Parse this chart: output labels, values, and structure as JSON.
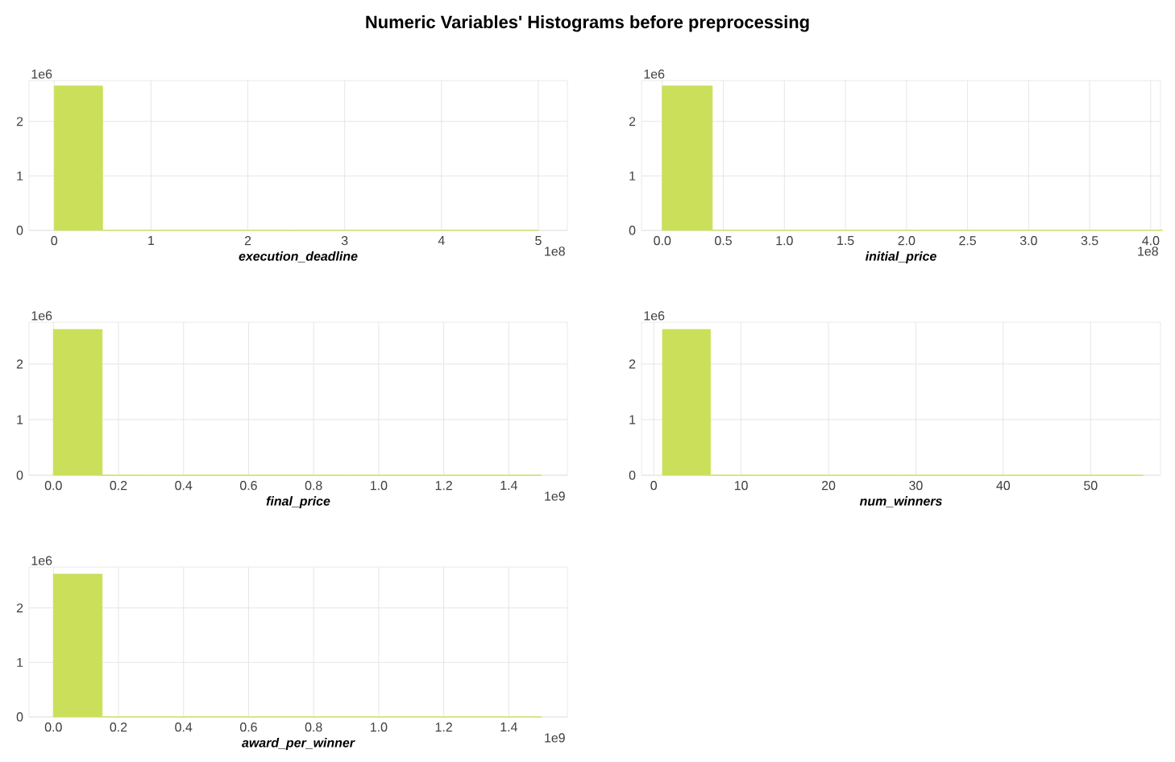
{
  "chart_data": [
    {
      "type": "histogram",
      "title": "Numeric Variables' Histograms before preprocessing",
      "xlabel": "execution_deadline",
      "color": "#cbdf5a",
      "bins": [
        0,
        0.5,
        1,
        1.5,
        2,
        2.5,
        3,
        3.5,
        4,
        4.5,
        5
      ],
      "values": [
        2.65,
        0,
        0,
        0,
        0,
        0,
        0,
        0,
        0,
        0
      ],
      "xlim": [
        -0.26,
        5.3
      ],
      "ylim": [
        0,
        2.75
      ],
      "xticks": [
        0,
        1,
        2,
        3,
        4,
        5
      ],
      "yticks": [
        0,
        1,
        2
      ],
      "grid": true,
      "annotations": [
        "1e6",
        "1e8"
      ]
    },
    {
      "type": "histogram",
      "xlabel": "initial_price",
      "color": "#cbdf5a",
      "bins": [
        0,
        0.41,
        0.82,
        1.23,
        1.64,
        2.05,
        2.46,
        2.87,
        3.28,
        3.69,
        4.1
      ],
      "values": [
        2.65,
        0,
        0,
        0,
        0,
        0,
        0,
        0,
        0,
        0
      ],
      "xlim": [
        -0.17,
        4.08
      ],
      "ylim": [
        0,
        2.75
      ],
      "xticks": [
        {
          "value": 0,
          "label": "0.0"
        },
        {
          "value": 0.5,
          "label": "0.5"
        },
        {
          "value": 1,
          "label": "1.0"
        },
        {
          "value": 1.5,
          "label": "1.5"
        },
        {
          "value": 2,
          "label": "2.0"
        },
        {
          "value": 2.5,
          "label": "2.5"
        },
        {
          "value": 3,
          "label": "3.0"
        },
        {
          "value": 3.5,
          "label": "3.5"
        },
        {
          "value": 4,
          "label": "4.0"
        }
      ],
      "yticks": [
        0,
        1,
        2
      ],
      "grid": true,
      "annotations": [
        "1e6",
        "1e8"
      ]
    },
    {
      "type": "histogram",
      "xlabel": "final_price",
      "color": "#cbdf5a",
      "bins": [
        0,
        0.15,
        0.3,
        0.45,
        0.6,
        0.75,
        0.9,
        1.05,
        1.2,
        1.35,
        1.5
      ],
      "values": [
        2.62,
        0,
        0,
        0,
        0,
        0,
        0,
        0,
        0,
        0
      ],
      "xlim": [
        -0.075,
        1.58
      ],
      "ylim": [
        0,
        2.75
      ],
      "xticks": [
        {
          "value": 0,
          "label": "0.0"
        },
        {
          "value": 0.2,
          "label": "0.2"
        },
        {
          "value": 0.4,
          "label": "0.4"
        },
        {
          "value": 0.6,
          "label": "0.6"
        },
        {
          "value": 0.8,
          "label": "0.8"
        },
        {
          "value": 1,
          "label": "1.0"
        },
        {
          "value": 1.2,
          "label": "1.2"
        },
        {
          "value": 1.4,
          "label": "1.4"
        }
      ],
      "yticks": [
        0,
        1,
        2
      ],
      "grid": true,
      "annotations": [
        "1e6",
        "1e9"
      ]
    },
    {
      "type": "histogram",
      "xlabel": "num_winners",
      "color": "#cbdf5a",
      "bins": [
        1,
        6.5,
        12,
        17.5,
        23,
        28.5,
        34,
        39.5,
        45,
        50.5,
        56
      ],
      "values": [
        2.62,
        0,
        0,
        0,
        0,
        0,
        0,
        0,
        0,
        0
      ],
      "xlim": [
        -1.4,
        58
      ],
      "ylim": [
        0,
        2.75
      ],
      "xticks": [
        0,
        10,
        20,
        30,
        40,
        50
      ],
      "yticks": [
        0,
        1,
        2
      ],
      "grid": true,
      "annotations": [
        "1e6"
      ]
    },
    {
      "type": "histogram",
      "xlabel": "award_per_winner",
      "color": "#cbdf5a",
      "bins": [
        0,
        0.15,
        0.3,
        0.45,
        0.6,
        0.75,
        0.9,
        1.05,
        1.2,
        1.35,
        1.5
      ],
      "values": [
        2.62,
        0,
        0,
        0,
        0,
        0,
        0,
        0,
        0,
        0
      ],
      "xlim": [
        -0.075,
        1.58
      ],
      "ylim": [
        0,
        2.75
      ],
      "xticks": [
        {
          "value": 0,
          "label": "0.0"
        },
        {
          "value": 0.2,
          "label": "0.2"
        },
        {
          "value": 0.4,
          "label": "0.4"
        },
        {
          "value": 0.6,
          "label": "0.6"
        },
        {
          "value": 0.8,
          "label": "0.8"
        },
        {
          "value": 1,
          "label": "1.0"
        },
        {
          "value": 1.2,
          "label": "1.2"
        },
        {
          "value": 1.4,
          "label": "1.4"
        }
      ],
      "yticks": [
        0,
        1,
        2
      ],
      "grid": true,
      "annotations": [
        "1e6",
        "1e9"
      ]
    }
  ]
}
